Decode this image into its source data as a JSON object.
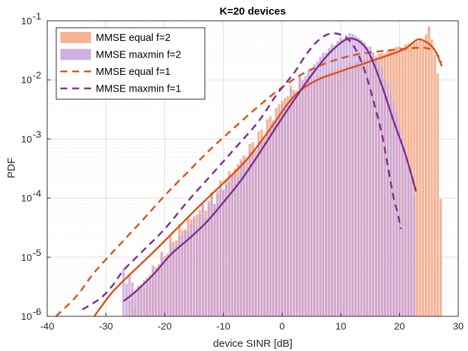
{
  "chart_data": {
    "type": "histogram+line",
    "title": "K=20 devices",
    "xlabel": "device SINR [dB]",
    "ylabel": "PDF",
    "xlim": [
      -40,
      30
    ],
    "ylim": [
      1e-06,
      0.1
    ],
    "yscale": "log",
    "grid": true,
    "minor_grid": true,
    "legend_position": "top-left",
    "x_ticks": [
      "-40",
      "-30",
      "-20",
      "-10",
      "0",
      "10",
      "20",
      "30"
    ],
    "y_ticks": [
      {
        "base": "10",
        "exp": "-6"
      },
      {
        "base": "10",
        "exp": "-5"
      },
      {
        "base": "10",
        "exp": "-4"
      },
      {
        "base": "10",
        "exp": "-3"
      },
      {
        "base": "10",
        "exp": "-2"
      },
      {
        "base": "10",
        "exp": "-1"
      }
    ],
    "series": [
      {
        "name": "MMSE equal f=2",
        "kind": "histogram",
        "color": "#F4A582",
        "bin_width": 0.5,
        "points": [
          [
            -26,
            1.5e-06
          ],
          [
            -24,
            3e-06
          ],
          [
            -22,
            6e-06
          ],
          [
            -20,
            1.2e-05
          ],
          [
            -18,
            2.5e-05
          ],
          [
            -15,
            5e-05
          ],
          [
            -12,
            0.0001
          ],
          [
            -10,
            0.00018
          ],
          [
            -8,
            0.00032
          ],
          [
            -6,
            0.0006
          ],
          [
            -4,
            0.0011
          ],
          [
            -2,
            0.0022
          ],
          [
            0,
            0.0045
          ],
          [
            2,
            0.0075
          ],
          [
            4,
            0.0095
          ],
          [
            6,
            0.011
          ],
          [
            8,
            0.0135
          ],
          [
            10,
            0.016
          ],
          [
            12,
            0.019
          ],
          [
            14,
            0.022
          ],
          [
            16,
            0.026
          ],
          [
            18,
            0.031
          ],
          [
            20,
            0.036
          ],
          [
            22,
            0.042
          ],
          [
            23,
            0.046
          ],
          [
            24,
            0.05
          ],
          [
            25,
            0.075
          ],
          [
            25.5,
            0.05
          ],
          [
            26,
            0.028
          ],
          [
            26.5,
            0.012
          ],
          [
            27,
            0.0001
          ]
        ]
      },
      {
        "name": "MMSE maxmin f=2",
        "kind": "histogram",
        "color": "#C8A2D8",
        "bin_width": 0.5,
        "points": [
          [
            -27,
            6e-06
          ],
          [
            -25,
            3e-06
          ],
          [
            -23,
            4e-06
          ],
          [
            -21,
            8e-06
          ],
          [
            -19,
            1.4e-05
          ],
          [
            -17,
            2.5e-05
          ],
          [
            -15,
            4e-05
          ],
          [
            -13,
            7e-05
          ],
          [
            -11,
            0.00012
          ],
          [
            -9,
            0.0002
          ],
          [
            -7,
            0.00035
          ],
          [
            -5,
            0.0006
          ],
          [
            -3,
            0.0011
          ],
          [
            -1,
            0.0023
          ],
          [
            1,
            0.0045
          ],
          [
            3,
            0.009
          ],
          [
            5,
            0.016
          ],
          [
            7,
            0.028
          ],
          [
            9,
            0.042
          ],
          [
            11,
            0.057
          ],
          [
            12,
            0.062
          ],
          [
            13,
            0.052
          ],
          [
            15,
            0.035
          ],
          [
            17,
            0.016
          ],
          [
            19,
            0.0045
          ],
          [
            20,
            0.0018
          ],
          [
            21,
            0.0006
          ],
          [
            22,
            0.0002
          ],
          [
            22.5,
            0.00012
          ]
        ]
      },
      {
        "name": "MMSE equal f=1",
        "kind": "line",
        "style": "dashed",
        "color": "#D95319",
        "points": [
          [
            -38.5,
            1e-06
          ],
          [
            -35,
            2.2e-06
          ],
          [
            -32,
            5.5e-06
          ],
          [
            -28,
            1.5e-05
          ],
          [
            -24,
            4e-05
          ],
          [
            -20,
            0.00011
          ],
          [
            -16,
            0.00028
          ],
          [
            -12,
            0.0007
          ],
          [
            -8,
            0.0016
          ],
          [
            -4,
            0.0036
          ],
          [
            0,
            0.0075
          ],
          [
            4,
            0.0135
          ],
          [
            8,
            0.02
          ],
          [
            12,
            0.026
          ],
          [
            16,
            0.03
          ],
          [
            20,
            0.033
          ],
          [
            24,
            0.035
          ],
          [
            26,
            0.03
          ],
          [
            27.2,
            0.02
          ]
        ]
      },
      {
        "name": "MMSE maxmin f=1",
        "kind": "line",
        "style": "dashed",
        "color": "#7E2F8E",
        "points": [
          [
            -34,
            1.3e-06
          ],
          [
            -31,
            2e-06
          ],
          [
            -29,
            3.2e-06
          ],
          [
            -27,
            6e-06
          ],
          [
            -24,
            1.2e-05
          ],
          [
            -20,
            3e-05
          ],
          [
            -16,
            9e-05
          ],
          [
            -12,
            0.00025
          ],
          [
            -8,
            0.0007
          ],
          [
            -4,
            0.002
          ],
          [
            -1,
            0.0055
          ],
          [
            2,
            0.013
          ],
          [
            4,
            0.026
          ],
          [
            6,
            0.045
          ],
          [
            8,
            0.06
          ],
          [
            10,
            0.058
          ],
          [
            12,
            0.04
          ],
          [
            14,
            0.015
          ],
          [
            16,
            0.003
          ],
          [
            17,
            0.0012
          ],
          [
            18,
            0.00035
          ],
          [
            19,
            0.0001
          ],
          [
            19.7,
            5.5e-05
          ],
          [
            20.2,
            3e-05
          ]
        ]
      },
      {
        "name": "",
        "kind": "line",
        "style": "solid",
        "color": "#D95319",
        "points": [
          [
            -32,
            1e-06
          ],
          [
            -29,
            2.5e-06
          ],
          [
            -26,
            5e-06
          ],
          [
            -22,
            1.2e-05
          ],
          [
            -18,
            3e-05
          ],
          [
            -14,
            7.5e-05
          ],
          [
            -10,
            0.00018
          ],
          [
            -6,
            0.00045
          ],
          [
            -2,
            0.0015
          ],
          [
            1,
            0.004
          ],
          [
            3,
            0.0065
          ],
          [
            6,
            0.01
          ],
          [
            10,
            0.014
          ],
          [
            14,
            0.019
          ],
          [
            18,
            0.026
          ],
          [
            21,
            0.034
          ],
          [
            23,
            0.048
          ],
          [
            24.5,
            0.044
          ],
          [
            26,
            0.032
          ],
          [
            27.2,
            0.017
          ]
        ]
      },
      {
        "name": "",
        "kind": "line",
        "style": "solid",
        "color": "#7E2F8E",
        "points": [
          [
            -27,
            1.8e-06
          ],
          [
            -25,
            2.6e-06
          ],
          [
            -22,
            5e-06
          ],
          [
            -19,
            1.1e-05
          ],
          [
            -16,
            2e-05
          ],
          [
            -13,
            3.8e-05
          ],
          [
            -10,
            8.5e-05
          ],
          [
            -7,
            0.0002
          ],
          [
            -4,
            0.00055
          ],
          [
            -1,
            0.0016
          ],
          [
            2,
            0.0045
          ],
          [
            5,
            0.012
          ],
          [
            8,
            0.028
          ],
          [
            10.5,
            0.046
          ],
          [
            12,
            0.05
          ],
          [
            13.5,
            0.042
          ],
          [
            15,
            0.026
          ],
          [
            17,
            0.008
          ],
          [
            19,
            0.002
          ],
          [
            21,
            0.00055
          ],
          [
            22.8,
            0.00013
          ]
        ]
      }
    ]
  }
}
